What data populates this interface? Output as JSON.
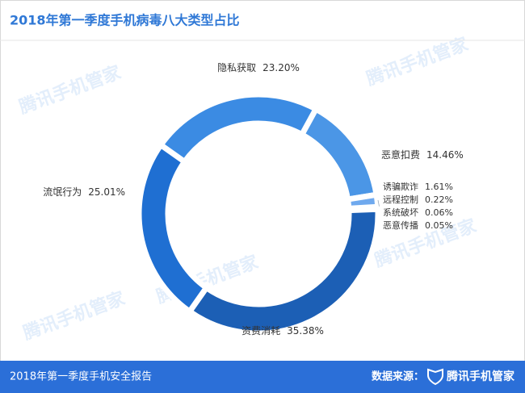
{
  "chart_data": {
    "type": "pie",
    "title": "2018年第一季度手机病毒八大类型占比",
    "categories": [
      "隐私获取",
      "恶意扣费",
      "诱骗欺诈",
      "远程控制",
      "系统破坏",
      "恶意传播",
      "资费消耗",
      "流氓行为"
    ],
    "values": [
      23.2,
      14.46,
      1.61,
      0.22,
      0.06,
      0.05,
      35.38,
      25.01
    ],
    "value_labels": [
      "23.20%",
      "14.46%",
      "1.61%",
      "0.22%",
      "0.06%",
      "0.05%",
      "35.38%",
      "25.01%"
    ],
    "colors": [
      "#3b8be3",
      "#4b96e6",
      "#6fa9ee",
      "#5b9de8",
      "#4a90e0",
      "#3a82d8",
      "#1c5fb5",
      "#1f6fd2"
    ],
    "donut": true
  },
  "watermark": "腾讯手机管家",
  "footer": {
    "report": "2018年第一季度手机安全报告",
    "source_label": "数据来源：",
    "source": "腾讯手机管家"
  }
}
